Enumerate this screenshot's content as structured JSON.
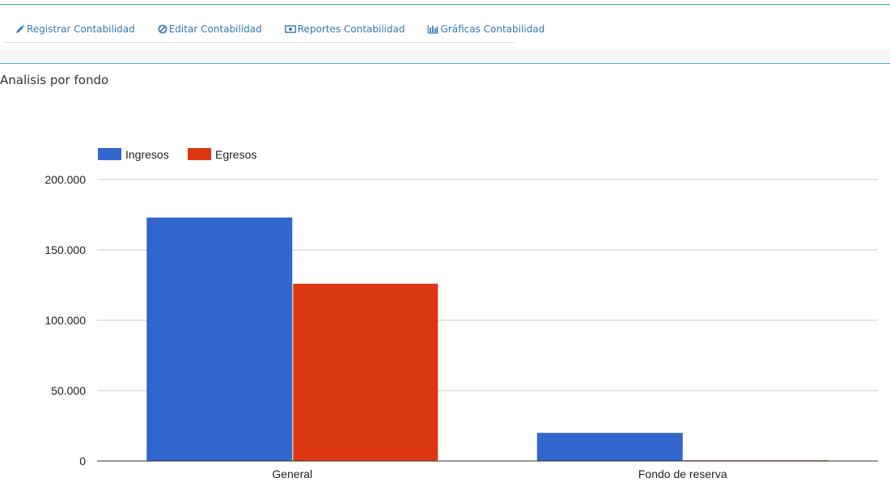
{
  "tabs": [
    {
      "label": "Registrar Contabilidad",
      "icon": "pencil-icon"
    },
    {
      "label": "Editar Contabilidad",
      "icon": "ban-icon"
    },
    {
      "label": "Reportes Contabilidad",
      "icon": "money-icon"
    },
    {
      "label": "Gráficas Contabilidad",
      "icon": "bar-chart-icon"
    }
  ],
  "panel": {
    "title": "Analisis por fondo"
  },
  "colors": {
    "accent_green": "#3cb371",
    "accent_teal": "#44b6c9",
    "link": "#337ab7",
    "ingresos": "#3366cc",
    "egresos": "#dc3912"
  },
  "chart_data": {
    "type": "bar",
    "categories": [
      "General",
      "Fondo de reserva"
    ],
    "series": [
      {
        "name": "Ingresos",
        "values": [
          173000,
          20000
        ],
        "color": "#3366cc"
      },
      {
        "name": "Egresos",
        "values": [
          126000,
          500
        ],
        "color": "#dc3912"
      }
    ],
    "ylim": [
      0,
      200000
    ],
    "yticks": [
      0,
      50000,
      100000,
      150000,
      200000
    ],
    "ytick_labels": [
      "0",
      "50.000",
      "100.000",
      "150.000",
      "200.000"
    ],
    "legend_position": "top-left",
    "grid": true
  }
}
